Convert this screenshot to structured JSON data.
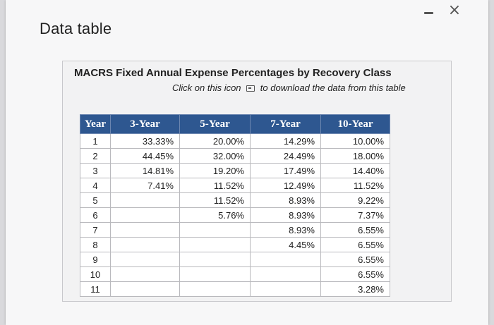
{
  "window": {
    "title": "Data table",
    "minimize_label": "-",
    "close_label": "×"
  },
  "panel": {
    "heading": "MACRS Fixed Annual Expense Percentages by Recovery Class",
    "subheading_before": "Click on this icon",
    "subheading_after": "to download the data from this table",
    "icon": "download-icon"
  },
  "table": {
    "headers": [
      "Year",
      "3-Year",
      "5-Year",
      "7-Year",
      "10-Year"
    ],
    "rows": [
      [
        "1",
        "33.33%",
        "20.00%",
        "14.29%",
        "10.00%"
      ],
      [
        "2",
        "44.45%",
        "32.00%",
        "24.49%",
        "18.00%"
      ],
      [
        "3",
        "14.81%",
        "19.20%",
        "17.49%",
        "14.40%"
      ],
      [
        "4",
        "7.41%",
        "11.52%",
        "12.49%",
        "11.52%"
      ],
      [
        "5",
        "",
        "11.52%",
        "8.93%",
        "9.22%"
      ],
      [
        "6",
        "",
        "5.76%",
        "8.93%",
        "7.37%"
      ],
      [
        "7",
        "",
        "",
        "8.93%",
        "6.55%"
      ],
      [
        "8",
        "",
        "",
        "4.45%",
        "6.55%"
      ],
      [
        "9",
        "",
        "",
        "",
        "6.55%"
      ],
      [
        "10",
        "",
        "",
        "",
        "6.55%"
      ],
      [
        "11",
        "",
        "",
        "",
        "3.28%"
      ]
    ]
  },
  "colors": {
    "header_bg": "#2e5790",
    "header_text": "#ffffff"
  }
}
